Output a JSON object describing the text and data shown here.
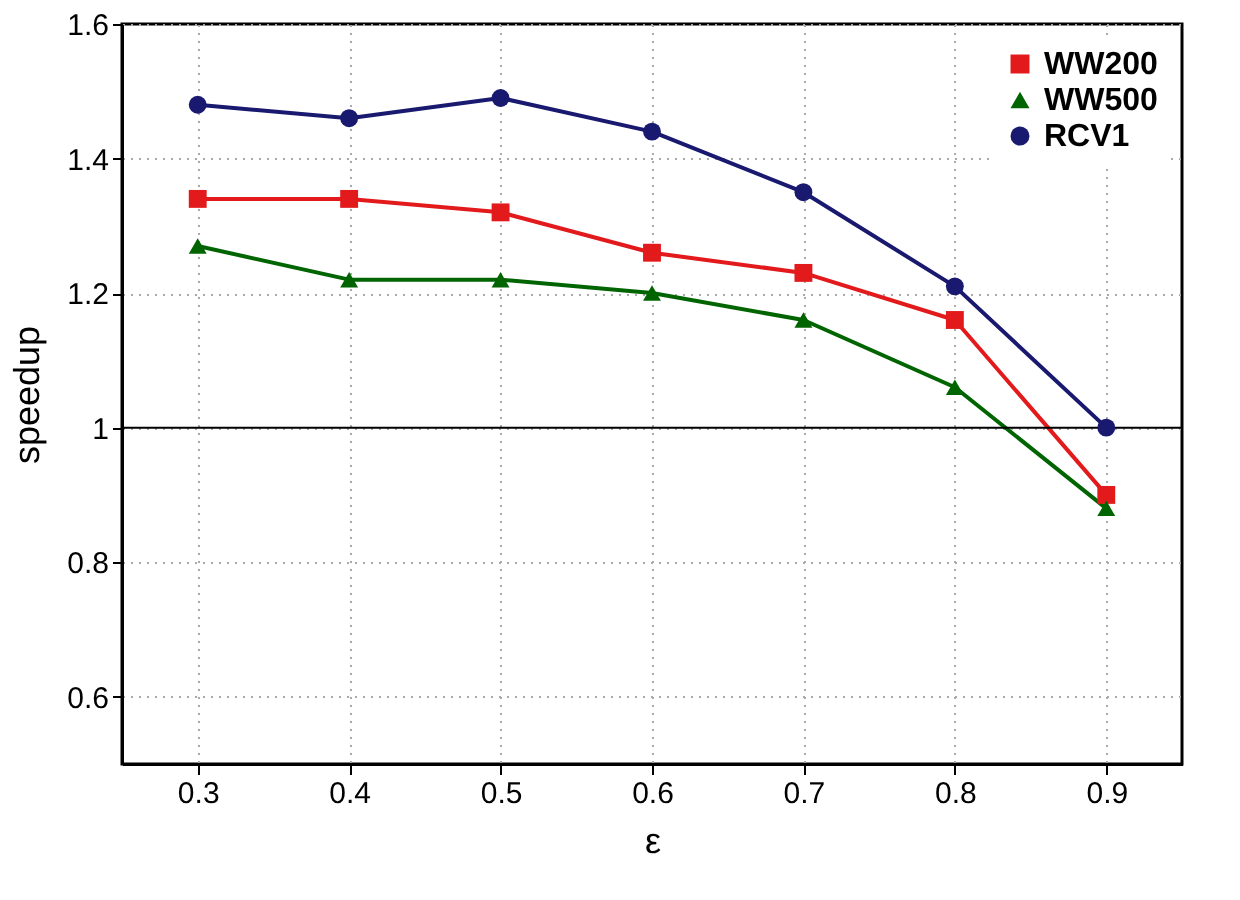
{
  "chart_data": {
    "type": "line",
    "xlabel": "ε",
    "ylabel": "speedup",
    "x": [
      0.3,
      0.4,
      0.5,
      0.6,
      0.7,
      0.8,
      0.9
    ],
    "series": [
      {
        "name": "WW200",
        "color": "#e31a1c",
        "marker": "square",
        "values": [
          1.34,
          1.34,
          1.32,
          1.26,
          1.23,
          1.16,
          0.9
        ]
      },
      {
        "name": "WW500",
        "color": "#006400",
        "marker": "triangle",
        "values": [
          1.27,
          1.22,
          1.22,
          1.2,
          1.16,
          1.06,
          0.88
        ]
      },
      {
        "name": "RCV1",
        "color": "#191970",
        "marker": "circle",
        "values": [
          1.48,
          1.46,
          1.49,
          1.44,
          1.35,
          1.21,
          1.0
        ]
      }
    ],
    "xlim": [
      0.25,
      0.95
    ],
    "xticks": [
      0.3,
      0.4,
      0.5,
      0.6,
      0.7,
      0.8,
      0.9
    ],
    "ylim": [
      0.5,
      1.6
    ],
    "yticks": [
      0.6,
      0.8,
      1,
      1.2,
      1.4,
      1.6
    ],
    "ref_lines": [
      {
        "axis": "y",
        "value": 1,
        "label": null,
        "color": "#000000",
        "line_style": "solid"
      }
    ],
    "grid": true,
    "legend": "top right",
    "line_style": "solid"
  }
}
